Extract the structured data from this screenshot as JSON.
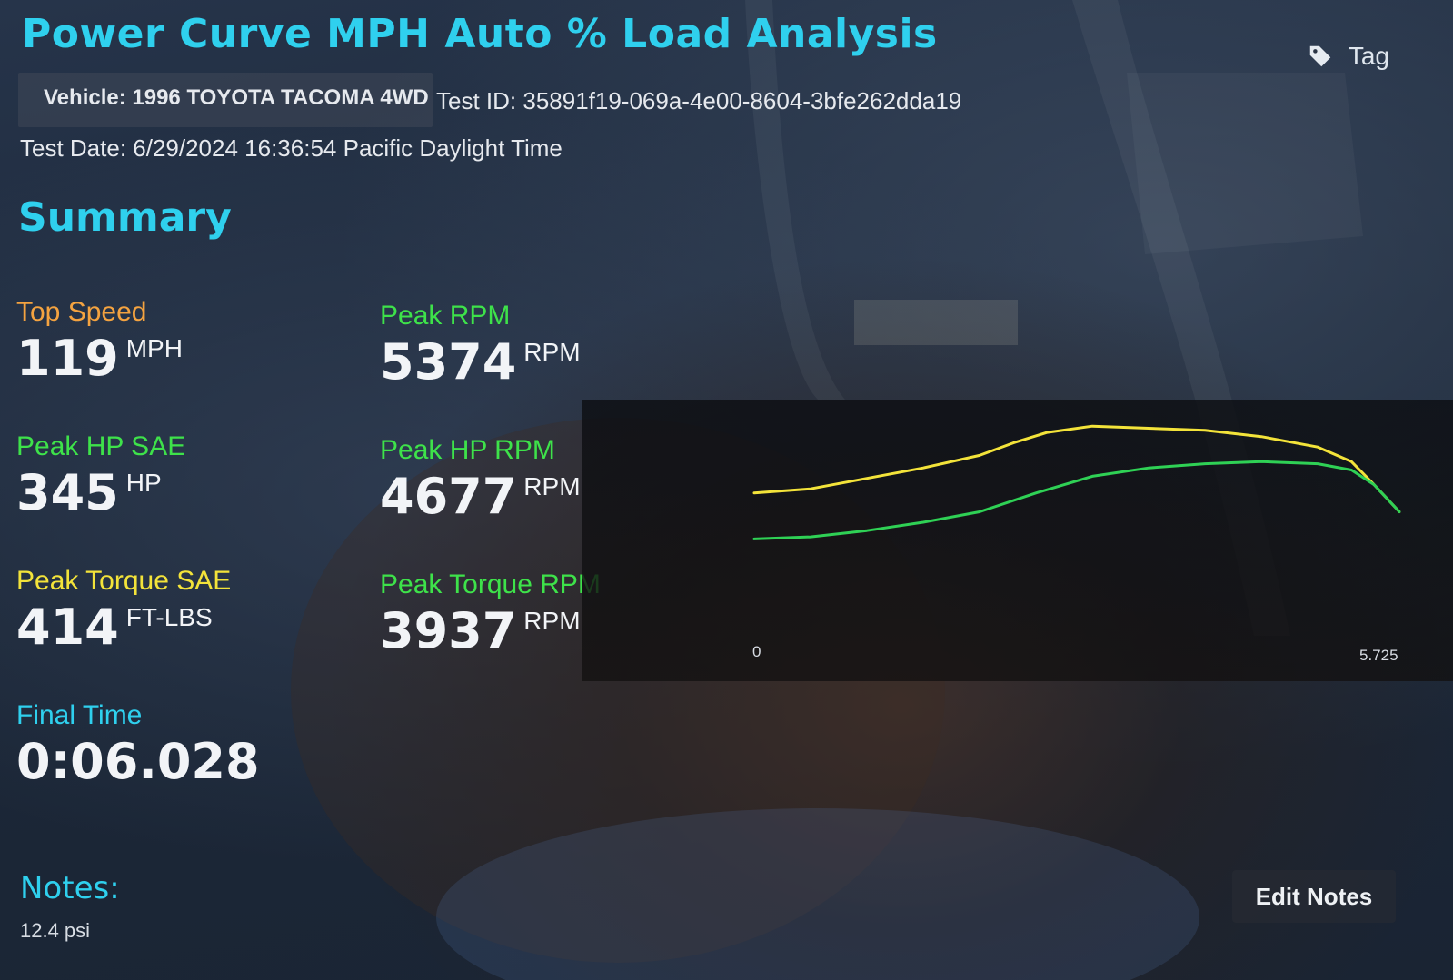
{
  "header": {
    "title": "Power Curve MPH Auto % Load Analysis",
    "tag_label": "Tag",
    "vehicle": "Vehicle: 1996 TOYOTA TACOMA 4WD",
    "test_id": "Test ID: 35891f19-069a-4e00-8604-3bfe262dda19",
    "test_date": "Test Date: 6/29/2024 16:36:54 Pacific Daylight Time"
  },
  "summary": {
    "heading": "Summary",
    "top_speed": {
      "label": "Top Speed",
      "value": "119",
      "unit": "MPH",
      "color": "#f4a340"
    },
    "peak_rpm": {
      "label": "Peak RPM",
      "value": "5374",
      "unit": "RPM",
      "color": "#3ee24a"
    },
    "peak_hp_sae": {
      "label": "Peak HP SAE",
      "value": "345",
      "unit": "HP",
      "color": "#3ee24a"
    },
    "peak_hp_rpm": {
      "label": "Peak HP RPM",
      "value": "4677",
      "unit": "RPM",
      "color": "#3ee24a"
    },
    "peak_torque_sae": {
      "label": "Peak Torque SAE",
      "value": "414",
      "unit": "FT-LBS",
      "color": "#f3e33a"
    },
    "peak_torque_rpm": {
      "label": "Peak Torque RPM",
      "value": "3937",
      "unit": "RPM",
      "color": "#3ee24a"
    },
    "final_time": {
      "label": "Final Time",
      "value": "0:06.028",
      "color": "#2fd0ee"
    }
  },
  "chart_data": {
    "type": "line",
    "x_ticks": [
      "0",
      "5.725"
    ],
    "xlim": [
      0,
      5.725
    ],
    "ylim": [
      0,
      1
    ],
    "y_scale_shown": false,
    "grid": false,
    "series": [
      {
        "color": "#f3e33a",
        "x": [
          0,
          0.5,
          1.0,
          1.5,
          2.0,
          2.3,
          2.6,
          3.0,
          3.5,
          4.0,
          4.5,
          5.0,
          5.3,
          5.5,
          5.725
        ],
        "y": [
          0.64,
          0.66,
          0.71,
          0.76,
          0.82,
          0.88,
          0.93,
          0.96,
          0.95,
          0.94,
          0.91,
          0.86,
          0.79,
          0.68,
          0.55
        ]
      },
      {
        "color": "#2fd155",
        "x": [
          0,
          0.5,
          1.0,
          1.5,
          2.0,
          2.5,
          3.0,
          3.5,
          4.0,
          4.5,
          5.0,
          5.3,
          5.5,
          5.725
        ],
        "y": [
          0.42,
          0.43,
          0.46,
          0.5,
          0.55,
          0.64,
          0.72,
          0.76,
          0.78,
          0.79,
          0.78,
          0.75,
          0.68,
          0.55
        ]
      }
    ]
  },
  "notes": {
    "label": "Notes:",
    "text": "12.4 psi",
    "edit_label": "Edit Notes"
  }
}
